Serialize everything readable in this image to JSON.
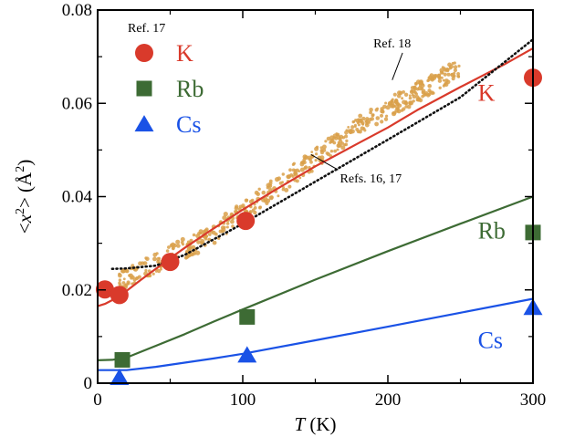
{
  "chart_data": {
    "type": "scatter",
    "x_label": {
      "italic": "T",
      "unit": " (K)"
    },
    "y_label": {
      "pre": "<",
      "var": "x",
      "sup": "2",
      "post": ">",
      "unit_open": "  (",
      "unit": "Å",
      "unit_sup": "2",
      "unit_close": ")"
    },
    "xlim": [
      0,
      300
    ],
    "ylim": [
      0,
      0.08
    ],
    "x_ticks": [
      {
        "value": 0,
        "label": "0"
      },
      {
        "value": 100,
        "label": "100"
      },
      {
        "value": 200,
        "label": "200"
      },
      {
        "value": 300,
        "label": "300"
      }
    ],
    "y_ticks": [
      {
        "value": 0,
        "label": "0"
      },
      {
        "value": 0.02,
        "label": "0.02"
      },
      {
        "value": 0.04,
        "label": "0.04"
      },
      {
        "value": 0.06,
        "label": "0.06"
      },
      {
        "value": 0.08,
        "label": "0.08"
      }
    ],
    "legend": {
      "title": "Ref. 17",
      "placement": "top-left",
      "entries": [
        {
          "label": "K",
          "marker": "circle",
          "color": "#d93a2b"
        },
        {
          "label": "Rb",
          "marker": "square",
          "color": "#3d6b34"
        },
        {
          "label": "Cs",
          "marker": "triangle",
          "color": "#1a52e6"
        }
      ]
    },
    "points": [
      {
        "series": "K",
        "marker": "circle",
        "color": "#d93a2b",
        "data": [
          [
            5,
            0.0201
          ],
          [
            15,
            0.0189
          ],
          [
            50,
            0.026
          ],
          [
            102,
            0.0348
          ],
          [
            300,
            0.0655
          ]
        ]
      },
      {
        "series": "Rb",
        "marker": "square",
        "color": "#3d6b34",
        "data": [
          [
            17,
            0.005
          ],
          [
            103,
            0.0142
          ],
          [
            300,
            0.0323
          ]
        ]
      },
      {
        "series": "Cs",
        "marker": "triangle",
        "color": "#1a52e6",
        "data": [
          [
            15,
            0.0012
          ],
          [
            103,
            0.006
          ],
          [
            300,
            0.0162
          ]
        ]
      }
    ],
    "curves": [
      {
        "series": "K",
        "color": "#d93a2b",
        "style": "solid",
        "x": [
          0,
          5,
          10,
          15,
          20,
          30,
          40,
          50,
          60,
          80,
          100,
          120,
          150,
          180,
          200,
          220,
          250,
          280,
          300
        ],
        "y": [
          0.0165,
          0.017,
          0.0178,
          0.0186,
          0.0198,
          0.0222,
          0.0245,
          0.0268,
          0.029,
          0.0332,
          0.0372,
          0.041,
          0.0465,
          0.0515,
          0.0548,
          0.0585,
          0.0635,
          0.0683,
          0.0718
        ]
      },
      {
        "series": "K",
        "color": "#111111",
        "style": "dotted",
        "x": [
          10,
          20,
          40,
          60,
          100,
          150,
          200,
          250,
          300
        ],
        "y": [
          0.0245,
          0.0246,
          0.0252,
          0.0275,
          0.0342,
          0.0432,
          0.0522,
          0.0613,
          0.0737
        ]
      },
      {
        "series": "Rb",
        "color": "#3d6b34",
        "style": "solid",
        "x": [
          0,
          10,
          20,
          40,
          60,
          80,
          100,
          150,
          200,
          250,
          300
        ],
        "y": [
          0.0049,
          0.005,
          0.0055,
          0.008,
          0.0105,
          0.0132,
          0.0158,
          0.0222,
          0.0283,
          0.0342,
          0.04
        ]
      },
      {
        "series": "Cs",
        "color": "#1a52e6",
        "style": "solid",
        "x": [
          0,
          20,
          40,
          60,
          80,
          100,
          150,
          200,
          250,
          300
        ],
        "y": [
          0.0028,
          0.0028,
          0.0035,
          0.0044,
          0.0053,
          0.0063,
          0.0092,
          0.0121,
          0.0151,
          0.0181
        ]
      }
    ],
    "band": {
      "label": "Ref. 18",
      "color": "#d9a04a",
      "x_range": [
        15,
        250
      ],
      "x": [
        15,
        30,
        50,
        75,
        100,
        125,
        150,
        175,
        200,
        225,
        250
      ],
      "y": [
        0.0215,
        0.024,
        0.0275,
        0.031,
        0.0368,
        0.0425,
        0.0482,
        0.054,
        0.0588,
        0.0632,
        0.068
      ]
    },
    "annotations": [
      {
        "text": "Ref. 18",
        "x": 190,
        "y": 0.072,
        "arrow_to": [
          203,
          0.065
        ]
      },
      {
        "text": "Refs. 16, 17",
        "x": 167,
        "y": 0.043,
        "arrow_to": [
          147,
          0.049
        ]
      },
      {
        "text": "K",
        "x": 262,
        "y": 0.0605,
        "color": "#d93a2b"
      },
      {
        "text": "Rb",
        "x": 262,
        "y": 0.031,
        "color": "#3d6b34"
      },
      {
        "text": "Cs",
        "x": 262,
        "y": 0.0075,
        "color": "#1a52e6"
      }
    ]
  }
}
